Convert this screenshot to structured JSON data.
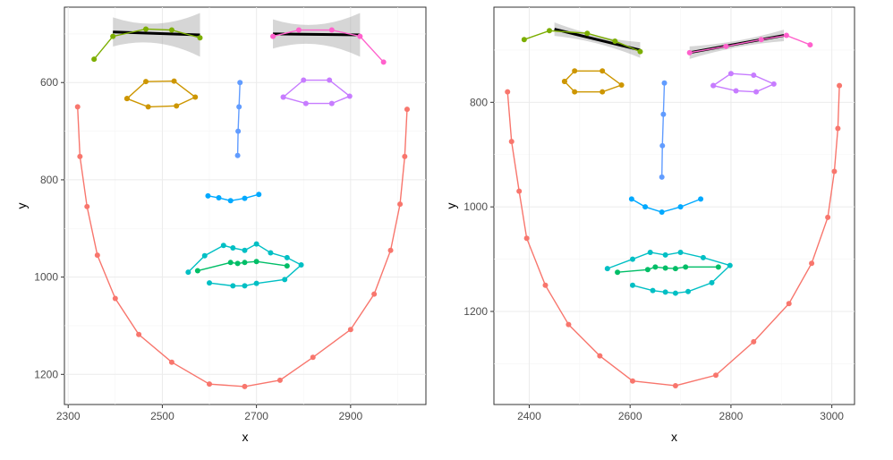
{
  "chart_data": [
    {
      "type": "line",
      "xlabel": "x",
      "ylabel": "y",
      "xlim": [
        2292,
        3060
      ],
      "ylim": [
        1262,
        445
      ],
      "y_reversed": true,
      "grid": true,
      "x_ticks": [
        2300,
        2500,
        2700,
        2900
      ],
      "y_ticks": [
        600,
        800,
        1000,
        1200
      ],
      "series": [
        {
          "color": "#F8766D",
          "x": [
            2320,
            2325,
            2340,
            2362,
            2400,
            2450,
            2520,
            2600,
            2675,
            2750,
            2820,
            2900,
            2950,
            2985,
            3005,
            3015,
            3020
          ],
          "y": [
            650,
            752,
            855,
            955,
            1044,
            1118,
            1175,
            1220,
            1225,
            1212,
            1165,
            1108,
            1035,
            945,
            850,
            752,
            655
          ]
        },
        {
          "color": "#7CAE00",
          "x": [
            2355,
            2395,
            2465,
            2520,
            2580
          ],
          "y": [
            552,
            505,
            490,
            492,
            508
          ]
        },
        {
          "color": "#CD9600",
          "x": [
            2425,
            2465,
            2525,
            2570,
            2530,
            2470,
            2425
          ],
          "y": [
            633,
            598,
            597,
            630,
            648,
            650,
            633
          ]
        },
        {
          "color": "#00BE67",
          "x": [
            2575,
            2645,
            2660,
            2675,
            2700,
            2765
          ],
          "y": [
            987,
            970,
            972,
            970,
            968,
            977
          ]
        },
        {
          "color": "#00BFC4",
          "x": [
            2555,
            2590,
            2630,
            2650,
            2675,
            2700,
            2730,
            2765,
            2795,
            2760,
            2700,
            2675,
            2650,
            2600
          ],
          "y": [
            990,
            956,
            935,
            940,
            945,
            932,
            950,
            960,
            975,
            1005,
            1013,
            1018,
            1018,
            1012
          ]
        },
        {
          "color": "#00A9FF",
          "x": [
            2597,
            2620,
            2645,
            2675,
            2705
          ],
          "y": [
            833,
            837,
            843,
            838,
            830
          ]
        },
        {
          "color": "#619CFF",
          "x": [
            2665,
            2663,
            2661,
            2660
          ],
          "y": [
            600,
            650,
            700,
            750
          ]
        },
        {
          "color": "#C77CFF",
          "x": [
            2757,
            2800,
            2855,
            2898,
            2860,
            2805,
            2757
          ],
          "y": [
            630,
            595,
            595,
            628,
            643,
            643,
            630
          ]
        },
        {
          "color": "#FF61CC",
          "x": [
            2735,
            2790,
            2860,
            2920,
            2970
          ],
          "y": [
            505,
            492,
            492,
            505,
            558
          ]
        }
      ],
      "fits": [
        {
          "x": [
            2395,
            2580
          ],
          "y": [
            496,
            502
          ],
          "band_outer": [
            30,
            45
          ],
          "band_mid": 14
        },
        {
          "x": [
            2735,
            2920
          ],
          "y": [
            500,
            502
          ],
          "band_outer": [
            30,
            45
          ],
          "band_mid": 14
        }
      ]
    },
    {
      "type": "line",
      "xlabel": "x",
      "ylabel": "y",
      "xlim": [
        2330,
        3045
      ],
      "ylim": [
        1378,
        618
      ],
      "y_reversed": true,
      "grid": true,
      "x_ticks": [
        2400,
        2600,
        2800,
        3000
      ],
      "y_ticks": [
        800,
        1000,
        1200
      ],
      "series": [
        {
          "color": "#F8766D",
          "x": [
            2357,
            2365,
            2380,
            2395,
            2432,
            2478,
            2540,
            2605,
            2690,
            2770,
            2845,
            2915,
            2960,
            2992,
            3005,
            3012,
            3015
          ],
          "y": [
            780,
            875,
            970,
            1060,
            1150,
            1225,
            1285,
            1333,
            1342,
            1322,
            1258,
            1185,
            1108,
            1020,
            932,
            850,
            768
          ]
        },
        {
          "color": "#7CAE00",
          "x": [
            2390,
            2440,
            2515,
            2570,
            2620
          ],
          "y": [
            680,
            663,
            668,
            683,
            703
          ]
        },
        {
          "color": "#CD9600",
          "x": [
            2470,
            2490,
            2545,
            2583,
            2545,
            2490,
            2470
          ],
          "y": [
            760,
            740,
            740,
            767,
            780,
            780,
            760
          ]
        },
        {
          "color": "#00BE67",
          "x": [
            2575,
            2635,
            2650,
            2670,
            2690,
            2710,
            2775
          ],
          "y": [
            1125,
            1120,
            1115,
            1117,
            1118,
            1115,
            1115
          ]
        },
        {
          "color": "#00BFC4",
          "x": [
            2555,
            2605,
            2640,
            2670,
            2700,
            2745,
            2798,
            2762,
            2715,
            2690,
            2670,
            2645,
            2605
          ],
          "y": [
            1118,
            1100,
            1087,
            1092,
            1087,
            1097,
            1112,
            1145,
            1162,
            1165,
            1163,
            1160,
            1150
          ]
        },
        {
          "color": "#00A9FF",
          "x": [
            2603,
            2630,
            2663,
            2700,
            2740
          ],
          "y": [
            985,
            1000,
            1010,
            1000,
            985
          ]
        },
        {
          "color": "#619CFF",
          "x": [
            2668,
            2666,
            2664,
            2663
          ],
          "y": [
            763,
            823,
            883,
            943
          ]
        },
        {
          "color": "#C77CFF",
          "x": [
            2765,
            2800,
            2845,
            2885,
            2850,
            2810,
            2765
          ],
          "y": [
            768,
            745,
            748,
            765,
            780,
            778,
            768
          ]
        },
        {
          "color": "#FF61CC",
          "x": [
            2718,
            2790,
            2860,
            2910,
            2957
          ],
          "y": [
            705,
            693,
            680,
            672,
            690
          ]
        }
      ],
      "fits": [
        {
          "x": [
            2450,
            2620
          ],
          "y": [
            660,
            700
          ],
          "band_outer": [
            13,
            15
          ],
          "band_mid": 6
        },
        {
          "x": [
            2718,
            2905
          ],
          "y": [
            705,
            672
          ],
          "band_outer": [
            12,
            11
          ],
          "band_mid": 5
        }
      ]
    }
  ]
}
